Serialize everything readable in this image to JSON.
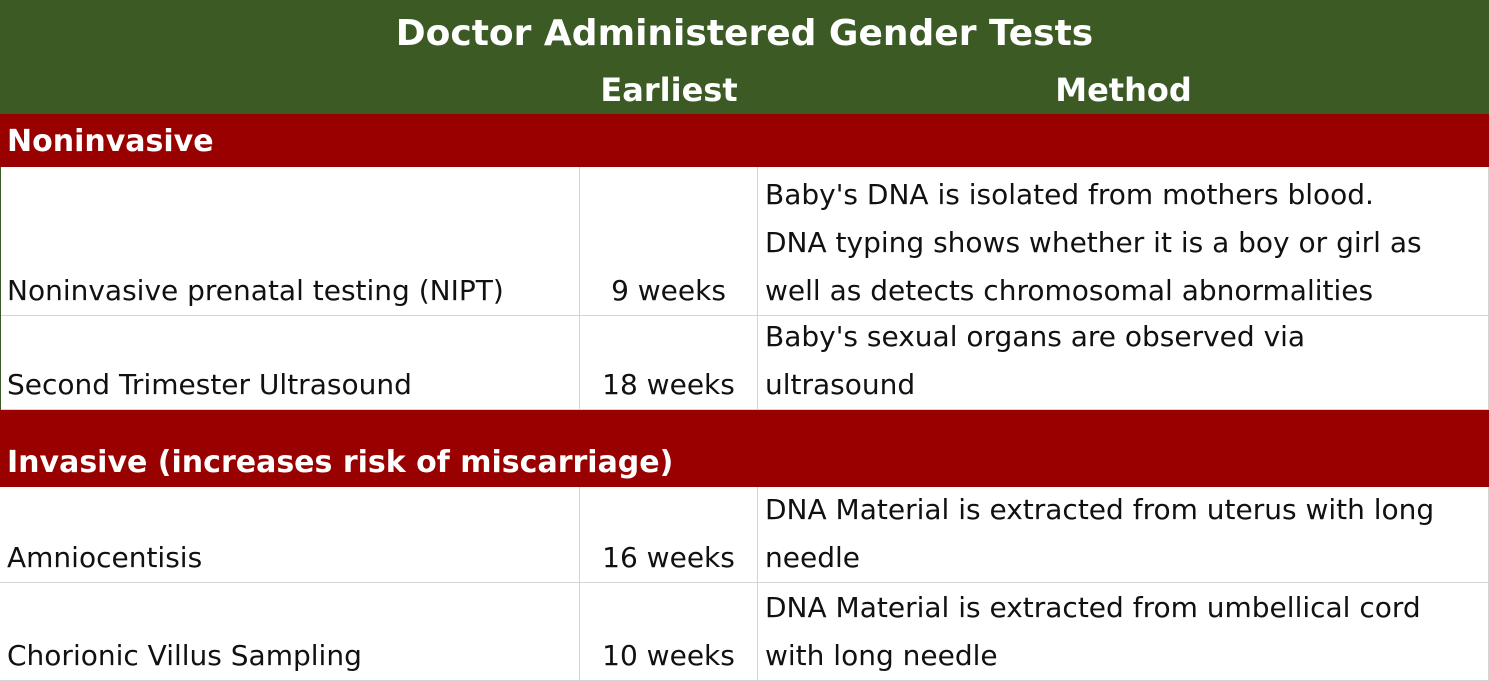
{
  "title": "Doctor Administered Gender Tests",
  "columns": {
    "earliest": "Earliest",
    "method": "Method"
  },
  "sections": [
    {
      "label": "Noninvasive",
      "rows": [
        {
          "name": "Noninvasive prenatal testing (NIPT)",
          "earliest": "9 weeks",
          "method_lines": [
            "Baby's DNA is isolated from mothers blood.",
            "DNA typing shows whether it is a boy or girl as",
            "well as detects chromosomal abnormalities"
          ]
        },
        {
          "name": "Second Trimester Ultrasound",
          "earliest": "18 weeks",
          "method_lines": [
            "Baby's sexual organs are observed via",
            "ultrasound"
          ]
        }
      ]
    },
    {
      "label": "Invasive (increases risk of miscarriage)",
      "rows": [
        {
          "name": "Amniocentisis",
          "earliest": "16 weeks",
          "method_lines": [
            "DNA Material is extracted from uterus with long",
            "needle"
          ]
        },
        {
          "name": "Chorionic Villus Sampling",
          "earliest": "10 weeks",
          "method_lines": [
            "DNA Material is extracted from umbellical cord",
            "with long needle"
          ]
        }
      ]
    }
  ],
  "colors": {
    "header_bg": "#3b5a24",
    "section_bg": "#990000",
    "header_text": "#ffffff",
    "grid_line": "#d4d4d4"
  }
}
